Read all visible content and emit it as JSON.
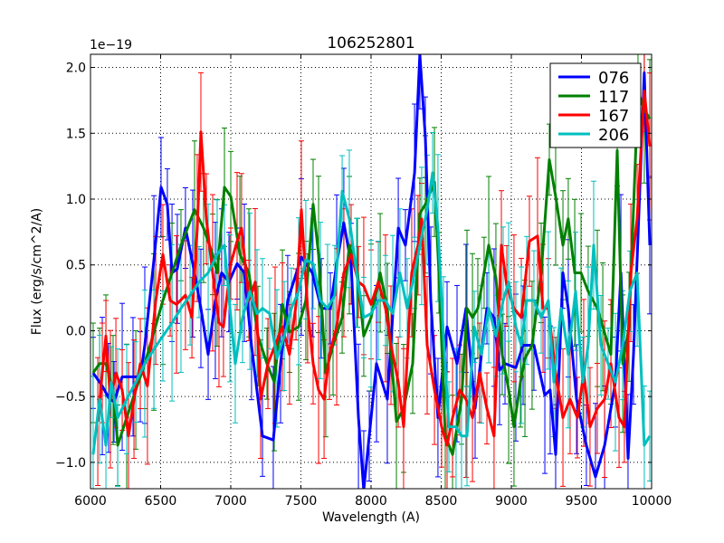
{
  "chart_data": {
    "type": "line",
    "title": "106252801",
    "xlabel": "Wavelength (A)",
    "ylabel": "Flux (erg/s/cm^2/A)",
    "y_offset_label": "1e−19",
    "xlim": [
      6000,
      10000
    ],
    "ylim": [
      -1.2,
      2.1
    ],
    "xticks": [
      6000,
      6500,
      7000,
      7500,
      8000,
      8500,
      9000,
      9500,
      10000
    ],
    "xtick_labels": [
      "6000",
      "6500",
      "7000",
      "7500",
      "8000",
      "8500",
      "9000",
      "9500",
      "10000"
    ],
    "yticks": [
      -1.0,
      -0.5,
      0.0,
      0.5,
      1.0,
      1.5,
      2.0
    ],
    "ytick_labels": [
      "−1.0",
      "−0.5",
      "0.0",
      "0.5",
      "1.0",
      "1.5",
      "2.0"
    ],
    "grid": true,
    "legend_position": "top-right",
    "typical_yerr": 0.45,
    "series": [
      {
        "name": "076",
        "color": "#0000ff",
        "x": [
          6019,
          6084,
          6129,
          6168,
          6226,
          6303,
          6355,
          6387,
          6452,
          6503,
          6548,
          6581,
          6619,
          6677,
          6729,
          6787,
          6839,
          6890,
          6935,
          6987,
          7045,
          7097,
          7148,
          7226,
          7303,
          7355,
          7406,
          7503,
          7581,
          7645,
          7710,
          7755,
          7806,
          7858,
          7910,
          7948,
          7987,
          8039,
          8116,
          8194,
          8245,
          8310,
          8348,
          8387,
          8426,
          8477,
          8542,
          8613,
          8677,
          8742,
          8826,
          8877,
          8916,
          8955,
          9032,
          9084,
          9161,
          9239,
          9277,
          9316,
          9368,
          9406,
          9465,
          9535,
          9600,
          9665,
          9742,
          9781,
          9832,
          9871,
          9948,
          9987
        ],
        "y": [
          -0.32,
          -0.42,
          -0.51,
          -0.54,
          -0.35,
          -0.35,
          -0.35,
          -0.11,
          0.54,
          1.09,
          0.96,
          0.44,
          0.47,
          0.78,
          0.51,
          0.17,
          -0.18,
          0.23,
          0.44,
          0.37,
          0.51,
          0.44,
          -0.11,
          -0.8,
          -0.83,
          -0.25,
          0.23,
          0.56,
          0.44,
          0.17,
          0.17,
          0.51,
          0.82,
          0.51,
          -0.66,
          -1.21,
          -0.8,
          -0.25,
          -0.52,
          0.78,
          0.65,
          1.2,
          2.1,
          1.47,
          0.23,
          -0.66,
          0.03,
          -0.25,
          0.17,
          -0.59,
          0.17,
          0.1,
          -0.3,
          -0.25,
          -0.28,
          -0.11,
          -0.11,
          -0.49,
          -0.45,
          -0.94,
          0.44,
          0.17,
          -0.52,
          -0.87,
          -1.11,
          -0.87,
          -0.39,
          0.44,
          -0.97,
          -0.18,
          1.96,
          0.65
        ]
      },
      {
        "name": "117",
        "color": "#008000",
        "x": [
          6019,
          6065,
          6110,
          6161,
          6194,
          6258,
          6323,
          6387,
          6452,
          6516,
          6581,
          6645,
          6742,
          6806,
          6871,
          6903,
          6955,
          7000,
          7065,
          7129,
          7194,
          7258,
          7310,
          7368,
          7419,
          7484,
          7535,
          7587,
          7626,
          7677,
          7729,
          7794,
          7845,
          7903,
          7948,
          8000,
          8065,
          8116,
          8181,
          8232,
          8297,
          8348,
          8387,
          8452,
          8484,
          8529,
          8581,
          8645,
          8684,
          8723,
          8761,
          8806,
          8839,
          8890,
          8935,
          8981,
          9019,
          9065,
          9097,
          9148,
          9213,
          9271,
          9316,
          9368,
          9406,
          9452,
          9497,
          9548,
          9613,
          9652,
          9710,
          9755,
          9794,
          9839,
          9903,
          9948,
          9987
        ],
        "y": [
          -0.32,
          -0.25,
          -0.25,
          -0.45,
          -0.87,
          -0.66,
          -0.45,
          -0.25,
          -0.01,
          0.23,
          0.44,
          0.65,
          0.92,
          0.78,
          0.58,
          0.44,
          1.09,
          1.02,
          0.58,
          0.44,
          -0.04,
          -0.25,
          -0.39,
          0.2,
          -0.01,
          0.03,
          0.23,
          0.96,
          0.58,
          -0.32,
          -0.11,
          0.1,
          0.65,
          0.44,
          -0.04,
          0.1,
          0.44,
          0.17,
          -0.69,
          -0.59,
          -0.25,
          0.89,
          0.96,
          1.13,
          0.44,
          -0.8,
          -0.94,
          -0.52,
          0.17,
          0.1,
          0.17,
          0.44,
          0.65,
          0.4,
          -0.18,
          -0.45,
          -0.73,
          -0.39,
          -0.21,
          -0.11,
          0.44,
          1.3,
          1.02,
          0.65,
          0.85,
          0.44,
          0.44,
          0.3,
          0.17,
          0.03,
          -0.18,
          1.37,
          -0.25,
          0.03,
          1.82,
          1.68,
          1.61
        ]
      },
      {
        "name": "167",
        "color": "#ff0000",
        "x": [
          6052,
          6084,
          6110,
          6142,
          6181,
          6226,
          6271,
          6310,
          6355,
          6406,
          6465,
          6516,
          6568,
          6613,
          6677,
          6723,
          6761,
          6787,
          6826,
          6871,
          6916,
          6948,
          7000,
          7045,
          7077,
          7129,
          7174,
          7213,
          7265,
          7316,
          7368,
          7419,
          7465,
          7503,
          7548,
          7587,
          7626,
          7665,
          7703,
          7755,
          7806,
          7858,
          7910,
          7948,
          8000,
          8052,
          8103,
          8142,
          8194,
          8232,
          8290,
          8335,
          8361,
          8400,
          8452,
          8503,
          8542,
          8581,
          8632,
          8677,
          8723,
          8774,
          8826,
          8877,
          8929,
          8968,
          9019,
          9071,
          9129,
          9187,
          9226,
          9264,
          9316,
          9368,
          9419,
          9471,
          9516,
          9561,
          9613,
          9665,
          9710,
          9768,
          9806,
          9852,
          9897,
          9948,
          9987
        ],
        "y": [
          -0.69,
          -0.32,
          -0.04,
          -0.52,
          -0.32,
          -0.45,
          -0.8,
          -0.52,
          -0.25,
          -0.42,
          0.23,
          0.58,
          0.23,
          0.2,
          0.27,
          0.1,
          0.78,
          1.51,
          0.85,
          0.44,
          0.06,
          0.03,
          0.51,
          0.68,
          0.78,
          0.23,
          0.37,
          -0.52,
          -0.25,
          -0.11,
          0.03,
          -0.18,
          0.2,
          0.92,
          0.17,
          -0.25,
          -0.45,
          -0.52,
          -0.18,
          0.03,
          0.44,
          0.58,
          0.37,
          0.34,
          0.2,
          0.37,
          0.17,
          -0.11,
          -0.39,
          -0.73,
          0.44,
          0.65,
          0.85,
          -0.11,
          -0.45,
          -0.73,
          -0.87,
          -0.66,
          -0.45,
          -0.52,
          -0.66,
          -0.32,
          -0.59,
          -0.8,
          0.65,
          0.34,
          0.17,
          0.1,
          0.68,
          0.72,
          0.17,
          0.17,
          -0.32,
          -0.66,
          -0.52,
          -0.66,
          -0.32,
          -0.73,
          -0.59,
          -0.52,
          -0.25,
          -0.66,
          -0.73,
          0.44,
          0.85,
          1.82,
          1.4
        ]
      },
      {
        "name": "206",
        "color": "#00bfbf",
        "x": [
          6019,
          6065,
          6110,
          6148,
          6194,
          6258,
          6323,
          6387,
          6452,
          6516,
          6581,
          6645,
          6710,
          6774,
          6839,
          6903,
          6955,
          6994,
          7032,
          7084,
          7136,
          7187,
          7226,
          7277,
          7329,
          7381,
          7432,
          7484,
          7535,
          7587,
          7639,
          7690,
          7742,
          7794,
          7845,
          7897,
          7948,
          8000,
          8052,
          8103,
          8155,
          8206,
          8258,
          8310,
          8361,
          8400,
          8439,
          8477,
          8516,
          8555,
          8606,
          8645,
          8684,
          8736,
          8787,
          8839,
          8890,
          8942,
          8981,
          9032,
          9071,
          9110,
          9161,
          9213,
          9264,
          9303,
          9355,
          9406,
          9458,
          9510,
          9548,
          9587,
          9639,
          9690,
          9742,
          9794,
          9845,
          9897,
          9948,
          9987
        ],
        "y": [
          -0.94,
          -0.52,
          -0.87,
          -0.39,
          -0.66,
          -0.52,
          -0.39,
          -0.25,
          -0.14,
          -0.04,
          0.06,
          0.17,
          0.27,
          0.37,
          0.44,
          0.58,
          0.65,
          0.17,
          -0.25,
          0.1,
          0.3,
          0.13,
          0.17,
          0.13,
          -0.21,
          -0.04,
          0.17,
          0.3,
          0.54,
          0.51,
          0.23,
          0.17,
          0.27,
          1.06,
          0.85,
          0.44,
          0.1,
          0.13,
          0.23,
          0.23,
          0.13,
          0.44,
          0.17,
          0.44,
          0.72,
          0.92,
          1.2,
          0.78,
          -0.04,
          -0.73,
          -0.73,
          -0.8,
          -0.8,
          0.03,
          -0.18,
          0.17,
          -0.04,
          0.23,
          0.37,
          0.03,
          -0.11,
          0.23,
          0.23,
          0.1,
          0.23,
          -0.39,
          0.17,
          -0.18,
          0.3,
          -0.39,
          -0.11,
          0.65,
          -0.11,
          -0.25,
          -0.39,
          -0.11,
          0.3,
          0.44,
          -0.87,
          -0.8
        ]
      }
    ]
  }
}
